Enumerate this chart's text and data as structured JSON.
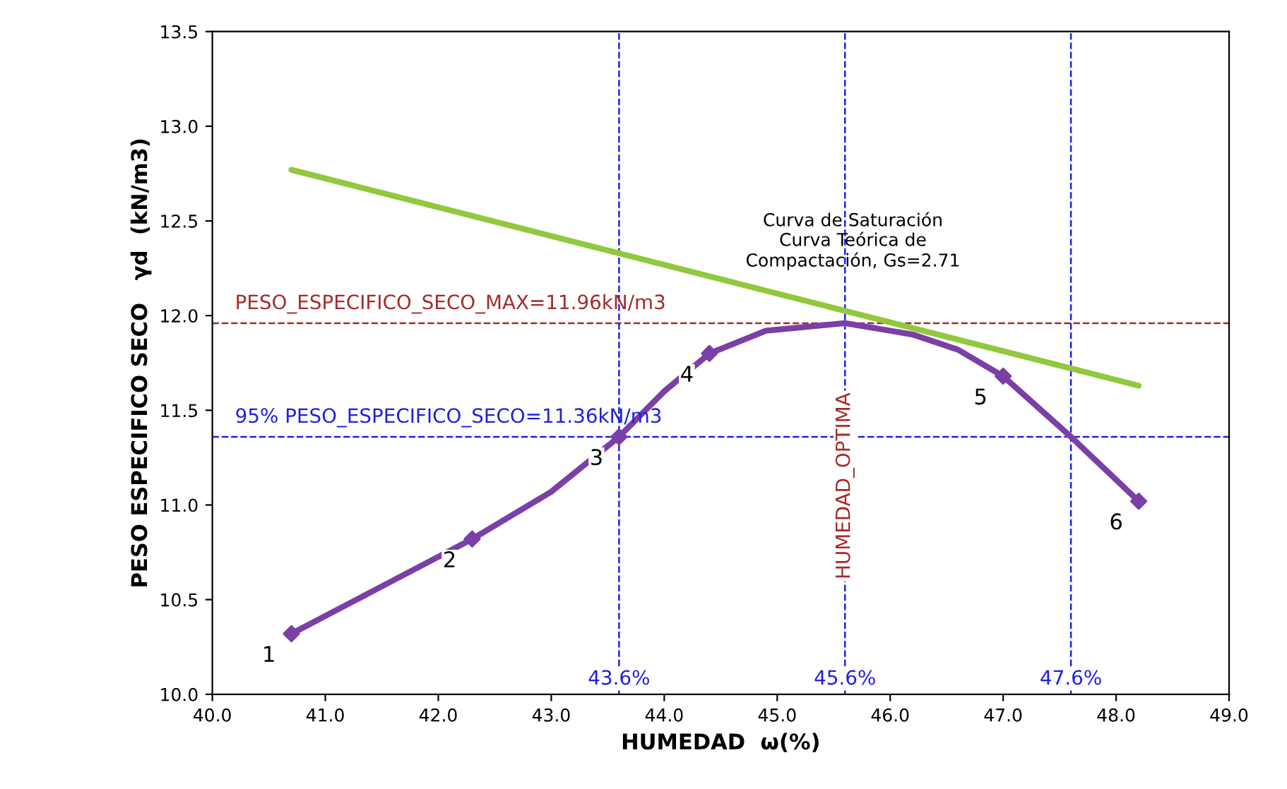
{
  "chart_data": {
    "type": "line",
    "xlabel": "HUMEDAD  ω(%)",
    "ylabel": "PESO ESPECIFICO SECO   γd  (kN/m3)",
    "xlim": [
      40,
      49
    ],
    "ylim": [
      10,
      13.5
    ],
    "xticks": [
      {
        "value": 40,
        "label": "40.0"
      },
      {
        "value": 41,
        "label": "41.0"
      },
      {
        "value": 42,
        "label": "42.0"
      },
      {
        "value": 43,
        "label": "43.0"
      },
      {
        "value": 44,
        "label": "44.0"
      },
      {
        "value": 45,
        "label": "45.0"
      },
      {
        "value": 46,
        "label": "46.0"
      },
      {
        "value": 47,
        "label": "47.0"
      },
      {
        "value": 48,
        "label": "48.0"
      },
      {
        "value": 49,
        "label": "49.0"
      }
    ],
    "yticks": [
      {
        "value": 10,
        "label": "10.0"
      },
      {
        "value": 10.5,
        "label": "10.5"
      },
      {
        "value": 11,
        "label": "11.0"
      },
      {
        "value": 11.5,
        "label": "11.5"
      },
      {
        "value": 12,
        "label": "12.0"
      },
      {
        "value": 12.5,
        "label": "12.5"
      },
      {
        "value": 13,
        "label": "13.0"
      },
      {
        "value": 13.5,
        "label": "13.5"
      }
    ],
    "grid": false,
    "legend": false,
    "series": [
      {
        "color": "#92c83e",
        "marker": "none",
        "x": [
          40.7,
          48.2
        ],
        "values": [
          12.77,
          11.63
        ]
      },
      {
        "color": "#7b3fa8",
        "marker": "none",
        "x": [
          40.7,
          41.5,
          42.3,
          43.0,
          43.6,
          44.0,
          44.4,
          44.9,
          45.6,
          46.2,
          46.6,
          47.0,
          47.6,
          48.2
        ],
        "values": [
          10.32,
          10.57,
          10.82,
          11.07,
          11.36,
          11.6,
          11.8,
          11.92,
          11.96,
          11.9,
          11.82,
          11.68,
          11.36,
          11.02
        ]
      },
      {
        "type": "scatter",
        "color": "#7b3fa8",
        "marker": "diamond",
        "x": [
          40.7,
          42.3,
          43.6,
          44.4,
          47.0,
          48.2
        ],
        "values": [
          10.32,
          10.82,
          11.36,
          11.8,
          11.68,
          11.02
        ]
      }
    ],
    "ref_lines": [
      {
        "axis": "y",
        "value": 11.96,
        "label": "PESO_ESPECIFICO_SECO_MAX=11.96kN/m3",
        "color": "#a52a2a",
        "line_style": "dashed"
      },
      {
        "axis": "y",
        "value": 11.36,
        "label": "95% PESO_ESPECIFICO_SECO=11.36kN/m3",
        "color": "#2020e0",
        "line_style": "dashed"
      },
      {
        "axis": "x",
        "value": 43.6,
        "label": "43.6%",
        "color": "#2020e0",
        "line_style": "dashed"
      },
      {
        "axis": "x",
        "value": 45.6,
        "label": "45.6%",
        "color": "#2020e0",
        "line_style": "dashed"
      },
      {
        "axis": "x",
        "value": 47.6,
        "label": "47.6%",
        "color": "#2020e0",
        "line_style": "dashed"
      }
    ],
    "annotations": [
      {
        "text": "HUMEDAD_OPTIMA",
        "x": 45.6,
        "y": 11.1
      },
      "Curva de Saturación\nCurva Teórica de\nCompactación, Gs=2.71",
      {
        "text": "1",
        "x": 40.7,
        "y": 10.32
      },
      {
        "text": "2",
        "x": 42.3,
        "y": 10.82
      },
      {
        "text": "3",
        "x": 43.6,
        "y": 11.36
      },
      {
        "text": "4",
        "x": 44.4,
        "y": 11.8
      },
      {
        "text": "5",
        "x": 47.0,
        "y": 11.68
      },
      {
        "text": "6",
        "x": 48.2,
        "y": 11.02
      }
    ]
  }
}
